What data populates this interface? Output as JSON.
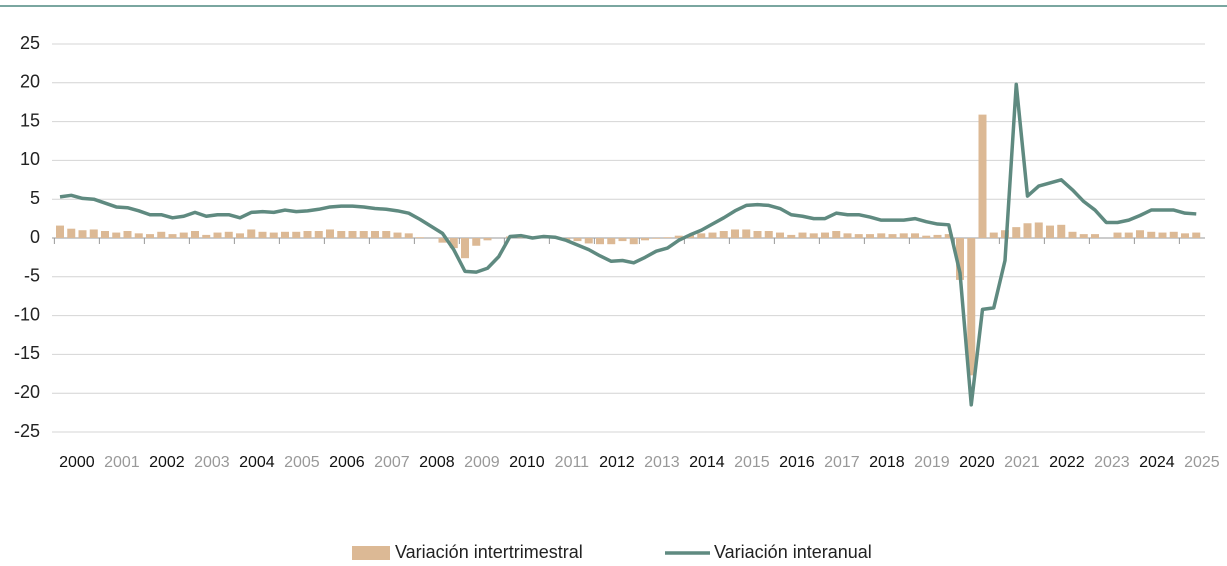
{
  "chart_data": {
    "type": "bar",
    "categories": [
      "2000",
      null,
      null,
      null,
      "2001",
      null,
      null,
      null,
      "2002",
      null,
      null,
      null,
      "2003",
      null,
      null,
      null,
      "2004",
      null,
      null,
      null,
      "2005",
      null,
      null,
      null,
      "2006",
      null,
      null,
      null,
      "2007",
      null,
      null,
      null,
      "2008",
      null,
      null,
      null,
      "2009",
      null,
      null,
      null,
      "2010",
      null,
      null,
      null,
      "2011",
      null,
      null,
      null,
      "2012",
      null,
      null,
      null,
      "2013",
      null,
      null,
      null,
      "2014",
      null,
      null,
      null,
      "2015",
      null,
      null,
      null,
      "2016",
      null,
      null,
      null,
      "2017",
      null,
      null,
      null,
      "2018",
      null,
      null,
      null,
      "2019",
      null,
      null,
      null,
      "2020",
      null,
      null,
      null,
      "2021",
      null,
      null,
      null,
      "2022",
      null,
      null,
      null,
      "2023",
      null,
      null,
      null,
      "2024",
      null,
      null,
      null,
      "2025",
      null
    ],
    "series": [
      {
        "name": "Variación intertrimestral",
        "type": "bar",
        "color": "#dcb995",
        "values": [
          1.6,
          1.2,
          1.0,
          1.1,
          0.9,
          0.7,
          0.9,
          0.6,
          0.5,
          0.8,
          0.5,
          0.7,
          0.9,
          0.4,
          0.7,
          0.8,
          0.6,
          1.1,
          0.8,
          0.7,
          0.8,
          0.8,
          0.9,
          0.9,
          1.1,
          0.9,
          0.9,
          0.9,
          0.9,
          0.9,
          0.7,
          0.6,
          0.1,
          0.0,
          -0.6,
          -1.3,
          -2.6,
          -1.0,
          -0.3,
          0.0,
          0.2,
          0.2,
          0.1,
          0.0,
          0.0,
          -0.3,
          -0.4,
          -0.7,
          -0.8,
          -0.8,
          -0.4,
          -0.8,
          -0.3,
          -0.1,
          0.1,
          0.3,
          0.4,
          0.6,
          0.7,
          0.9,
          1.1,
          1.1,
          0.9,
          0.9,
          0.7,
          0.4,
          0.7,
          0.6,
          0.7,
          0.9,
          0.6,
          0.5,
          0.5,
          0.6,
          0.5,
          0.6,
          0.6,
          0.3,
          0.4,
          0.5,
          -5.4,
          -17.7,
          15.9,
          0.7,
          1.0,
          1.4,
          1.9,
          2.0,
          1.6,
          1.7,
          0.8,
          0.5,
          0.5,
          0.0,
          0.7,
          0.7,
          1.0,
          0.8,
          0.7,
          0.8,
          0.6,
          0.7
        ]
      },
      {
        "name": "Variación interanual",
        "type": "line",
        "color": "#5f8a80",
        "values": [
          5.3,
          5.5,
          5.1,
          5.0,
          4.5,
          4.0,
          3.9,
          3.5,
          3.0,
          3.0,
          2.6,
          2.8,
          3.3,
          2.8,
          3.0,
          3.0,
          2.6,
          3.3,
          3.4,
          3.3,
          3.6,
          3.4,
          3.5,
          3.7,
          4.0,
          4.1,
          4.1,
          4.0,
          3.8,
          3.7,
          3.5,
          3.2,
          2.4,
          1.5,
          0.6,
          -1.5,
          -4.3,
          -4.4,
          -3.9,
          -2.4,
          0.2,
          0.3,
          0.0,
          0.2,
          0.1,
          -0.3,
          -0.9,
          -1.5,
          -2.3,
          -3.0,
          -2.9,
          -3.2,
          -2.5,
          -1.7,
          -1.3,
          -0.3,
          0.4,
          1.0,
          1.8,
          2.6,
          3.5,
          4.2,
          4.3,
          4.2,
          3.8,
          3.0,
          2.8,
          2.5,
          2.5,
          3.2,
          3.0,
          3.0,
          2.7,
          2.3,
          2.3,
          2.3,
          2.5,
          2.1,
          1.8,
          1.7,
          -4.5,
          -21.5,
          -9.2,
          -9.0,
          -2.9,
          19.8,
          5.4,
          6.7,
          7.1,
          7.5,
          6.2,
          4.7,
          3.6,
          2.0,
          2.0,
          2.3,
          2.9,
          3.6,
          3.6,
          3.6,
          3.2,
          3.1
        ]
      }
    ],
    "ylim": [
      -25,
      25
    ],
    "yticks": [
      -25,
      -20,
      -15,
      -10,
      -5,
      0,
      5,
      10,
      15,
      20,
      25
    ],
    "grid": true,
    "legend": "bottom"
  }
}
